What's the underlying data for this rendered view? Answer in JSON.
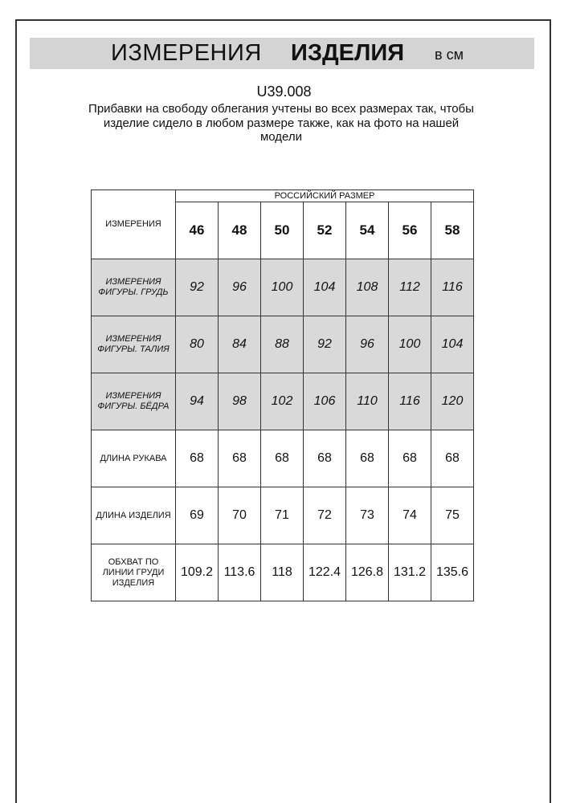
{
  "header": {
    "title_regular": "ИЗМЕРЕНИЯ",
    "title_bold": "ИЗДЕЛИЯ",
    "unit": "в см"
  },
  "product_code": "U39.008",
  "note": "Прибавки на свободу облегания учтены во всех размерах так, чтобы изделие сидело в любом размере также, как на фото на нашей модели",
  "table": {
    "corner_label": "ИЗМЕРЕНИЯ",
    "group_label": "РОССИЙСКИЙ РАЗМЕР",
    "sizes": [
      "46",
      "48",
      "50",
      "52",
      "54",
      "56",
      "58"
    ],
    "rows": [
      {
        "label": "ИЗМЕРЕНИЯ ФИГУРЫ. ГРУДЬ",
        "shaded": true,
        "values": [
          "92",
          "96",
          "100",
          "104",
          "108",
          "112",
          "116"
        ]
      },
      {
        "label": "ИЗМЕРЕНИЯ ФИГУРЫ. ТАЛИЯ",
        "shaded": true,
        "values": [
          "80",
          "84",
          "88",
          "92",
          "96",
          "100",
          "104"
        ]
      },
      {
        "label": "ИЗМЕРЕНИЯ ФИГУРЫ. БЁДРА",
        "shaded": true,
        "values": [
          "94",
          "98",
          "102",
          "106",
          "110",
          "116",
          "120"
        ]
      },
      {
        "label": "ДЛИНА РУКАВА",
        "shaded": false,
        "values": [
          "68",
          "68",
          "68",
          "68",
          "68",
          "68",
          "68"
        ]
      },
      {
        "label": "ДЛИНА ИЗДЕЛИЯ",
        "shaded": false,
        "values": [
          "69",
          "70",
          "71",
          "72",
          "73",
          "74",
          "75"
        ]
      },
      {
        "label": "ОБХВАТ ПО ЛИНИИ ГРУДИ ИЗДЕЛИЯ",
        "shaded": false,
        "values": [
          "109.2",
          "113.6",
          "118",
          "122.4",
          "126.8",
          "131.2",
          "135.6"
        ]
      }
    ]
  },
  "colors": {
    "header_bar": "#d4d4d4",
    "shaded_row": "#d9d9d9"
  }
}
